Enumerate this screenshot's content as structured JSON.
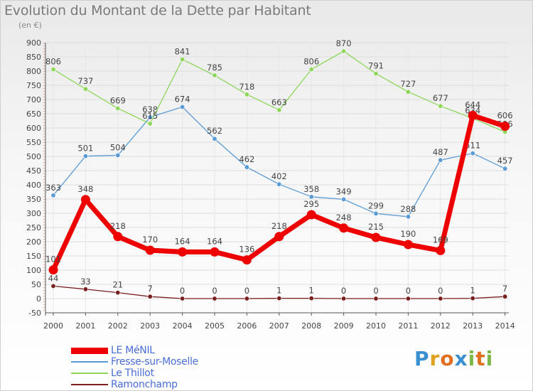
{
  "title": "Evolution du Montant de la Dette par Habitant",
  "subtitle": "(en €)",
  "logo": {
    "text": "Proxiti",
    "letters": [
      {
        "ch": "P",
        "color": "#3a8fd0"
      },
      {
        "ch": "r",
        "color": "#e0a020"
      },
      {
        "ch": "o",
        "color": "#e07020"
      },
      {
        "ch": "x",
        "color": "#3a8fd0"
      },
      {
        "ch": "i",
        "color": "#7cb84a"
      },
      {
        "ch": "t",
        "color": "#e07020"
      },
      {
        "ch": "i",
        "color": "#7cb84a"
      }
    ]
  },
  "chart_data": {
    "type": "line",
    "title": "Evolution du Montant de la Dette par Habitant",
    "subtitle": "(en €)",
    "x": [
      2000,
      2001,
      2002,
      2003,
      2004,
      2005,
      2006,
      2007,
      2008,
      2009,
      2010,
      2011,
      2012,
      2013,
      2014
    ],
    "ylim": [
      -50,
      900
    ],
    "yticks": [
      -50,
      0,
      50,
      100,
      150,
      200,
      250,
      300,
      350,
      400,
      450,
      500,
      550,
      600,
      650,
      700,
      750,
      800,
      850,
      900
    ],
    "grid": true,
    "legend_position": "bottom-left",
    "series": [
      {
        "name": "LE MéNIL",
        "color": "#ee0000",
        "emphasis": true,
        "values": [
          101,
          348,
          218,
          170,
          164,
          164,
          136,
          218,
          295,
          248,
          215,
          190,
          169,
          644,
          606
        ]
      },
      {
        "name": "Fresse-sur-Moselle",
        "color": "#5b9bd5",
        "emphasis": false,
        "values": [
          363,
          501,
          504,
          638,
          674,
          562,
          462,
          402,
          358,
          349,
          299,
          288,
          487,
          511,
          457
        ]
      },
      {
        "name": "Le Thillot",
        "color": "#8dd65a",
        "emphasis": false,
        "values": [
          806,
          737,
          669,
          615,
          841,
          785,
          718,
          663,
          806,
          870,
          791,
          727,
          677,
          634,
          586
        ]
      },
      {
        "name": "Ramonchamp",
        "color": "#7a1f1f",
        "emphasis": false,
        "values": [
          44,
          33,
          21,
          7,
          0,
          0,
          0,
          1,
          1,
          0,
          0,
          0,
          0,
          1,
          7
        ]
      }
    ]
  }
}
